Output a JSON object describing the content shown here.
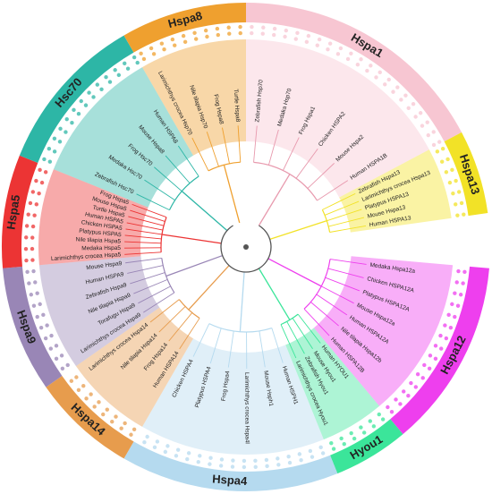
{
  "clades": [
    {
      "name": "Hspa1",
      "color": "#f7c6d2",
      "leaves": [
        "Zebrafish Hsp70",
        "Medaka Hsp70",
        "Frog Hspa1",
        "Chicken HSPA2",
        "Mouse Hspa2",
        "Human HSPA1B"
      ]
    },
    {
      "name": "Hspa13",
      "color": "#f2e227",
      "leaves": [
        "Zebrafish Hspa13",
        "Larimichthys crocea Hspa13",
        "Platypus HSPA13",
        "Mouse Hspa13",
        "Human HSPA13"
      ]
    },
    {
      "name": "Hspa12",
      "color": "#ee3fee",
      "leaves": [
        "Medaka Hspa12a",
        "Chicken HSPA12A",
        "Platypus HSPA12A",
        "Mouse Hspa12a",
        "Human HSPA12A",
        "Nile tilapia Hspa12b",
        "Human HSPA12B"
      ]
    },
    {
      "name": "Hyou1",
      "color": "#3be59a",
      "leaves": [
        "Human HYOU1",
        "Mouse Hyou1",
        "Zebrafish Hyou1",
        "Larimichthys crocea Hyou1"
      ]
    },
    {
      "name": "Hspa4",
      "color": "#b5daef",
      "leaves": [
        "Human HSPH1",
        "Mouse Hsph1",
        "Larimichthys crocea Hspa4l",
        "Frog Hspa4",
        "Platypus HSPA4",
        "Chicken HSPA4"
      ]
    },
    {
      "name": "Hspa14",
      "color": "#e79c4d",
      "leaves": [
        "Human HSPA14",
        "Frog Hspa14",
        "Nile tilapia Hspa14",
        "Larimichthys crocea Hspa14"
      ]
    },
    {
      "name": "Hspa9",
      "color": "#9986b6",
      "leaves": [
        "Larimichthys crocea Hspa9",
        "Torafugu Hspa9",
        "Nile tilapia Hspa9",
        "Zebrafish Hspa9",
        "Human HSPA9",
        "Mouse Hspa9"
      ]
    },
    {
      "name": "Hspa5",
      "color": "#ec3434",
      "leaves": [
        "Larimichthys crocea Hspa5",
        "Medaka Hspa5",
        "Nile tilapia Hspa5",
        "Platypus HSPA5",
        "Chicken HSPA5",
        "Human HSPA5",
        "Turtle Hspa5",
        "Mouse Hspa5",
        "Frog Hspa5"
      ]
    },
    {
      "name": "Hsc70",
      "color": "#2db6a6",
      "leaves": [
        "Zebrafish Hsc70",
        "Medaka Hsc70",
        "Frog Hsc70",
        "Mouse Hspa8",
        "Human HSPA8"
      ]
    },
    {
      "name": "Hspa8",
      "color": "#efa02f",
      "leaves": [
        "Larimichthys crocea Hsp70",
        "Nile tilapia Hsp70",
        "Frog Hspa8",
        "Turtle Hspa8"
      ]
    }
  ]
}
